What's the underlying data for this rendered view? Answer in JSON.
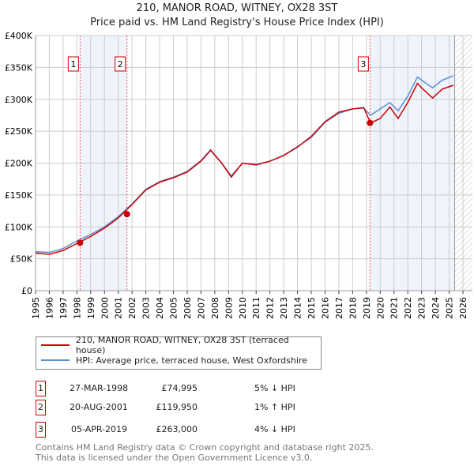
{
  "chart_data": {
    "type": "line",
    "title": "210, MANOR ROAD, WITNEY, OX28 3ST",
    "subtitle": "Price paid vs. HM Land Registry's House Price Index (HPI)",
    "xlim": [
      1995,
      2026
    ],
    "ylim": [
      0,
      400000
    ],
    "y_ticks": [
      "£0",
      "£50K",
      "£100K",
      "£150K",
      "£200K",
      "£250K",
      "£300K",
      "£350K",
      "£400K"
    ],
    "x_ticks": [
      "1995",
      "1996",
      "1997",
      "1998",
      "1999",
      "2000",
      "2001",
      "2002",
      "2003",
      "2004",
      "2005",
      "2006",
      "2007",
      "2008",
      "2009",
      "2010",
      "2011",
      "2012",
      "2013",
      "2014",
      "2015",
      "2016",
      "2017",
      "2018",
      "2019",
      "2020",
      "2021",
      "2022",
      "2023",
      "2024",
      "2025",
      "2026"
    ],
    "series": [
      {
        "name": "210, MANOR ROAD, WITNEY, OX28 3ST (terraced house)",
        "color": "#cc0000",
        "x": [
          1995,
          1996,
          1997,
          1998,
          1999,
          2000,
          2001,
          2002,
          2003,
          2004,
          2005,
          2006,
          2007,
          2007.7,
          2008.5,
          2009.2,
          2010,
          2011,
          2012,
          2013,
          2014,
          2015,
          2016,
          2017,
          2018,
          2018.8,
          2019.3,
          2020,
          2020.7,
          2021.3,
          2022,
          2022.7,
          2023,
          2023.8,
          2024.5,
          2025.3
        ],
        "y": [
          59000,
          57000,
          63000,
          74000,
          85000,
          98000,
          114000,
          135000,
          158000,
          170000,
          177000,
          186000,
          203000,
          220000,
          200000,
          178000,
          200000,
          197000,
          203000,
          212000,
          225000,
          242000,
          265000,
          280000,
          285000,
          287000,
          263000,
          270000,
          288000,
          270000,
          295000,
          325000,
          318000,
          302000,
          316000,
          322000
        ]
      },
      {
        "name": "HPI: Average price, terraced house, West Oxfordshire",
        "color": "#5b8fd4",
        "x": [
          1995,
          1996,
          1997,
          1998,
          1999,
          2000,
          2001,
          2002,
          2003,
          2004,
          2005,
          2006,
          2007,
          2007.7,
          2008.5,
          2009.2,
          2010,
          2011,
          2012,
          2013,
          2014,
          2015,
          2016,
          2017,
          2018,
          2018.8,
          2019.3,
          2020,
          2020.7,
          2021.3,
          2022,
          2022.7,
          2023,
          2023.8,
          2024.5,
          2025.3
        ],
        "y": [
          61000,
          60000,
          66000,
          78000,
          88000,
          100000,
          116000,
          136000,
          159000,
          171000,
          178000,
          187000,
          204000,
          221000,
          200000,
          180000,
          200000,
          198000,
          203000,
          212000,
          226000,
          240000,
          264000,
          278000,
          285000,
          286000,
          275000,
          285000,
          295000,
          282000,
          305000,
          335000,
          330000,
          318000,
          330000,
          337000
        ]
      }
    ],
    "sales": [
      {
        "label": "1",
        "x": 1998.23,
        "y": 74995,
        "date": "27-MAR-1998",
        "price": "£74,995",
        "hpi": "5% ↓ HPI"
      },
      {
        "label": "2",
        "x": 2001.63,
        "y": 119950,
        "date": "20-AUG-2001",
        "price": "£119,950",
        "hpi": "1% ↑ HPI"
      },
      {
        "label": "3",
        "x": 2019.26,
        "y": 263000,
        "date": "05-APR-2019",
        "price": "£263,000",
        "hpi": "4% ↓ HPI"
      }
    ],
    "legend": [
      "210, MANOR ROAD, WITNEY, OX28 3ST (terraced house)",
      "HPI: Average price, terraced house, West Oxfordshire"
    ],
    "legend_placement": "bottom"
  },
  "footer": [
    "Contains HM Land Registry data © Crown copyright and database right 2025.",
    "This data is licensed under the Open Government Licence v3.0."
  ]
}
